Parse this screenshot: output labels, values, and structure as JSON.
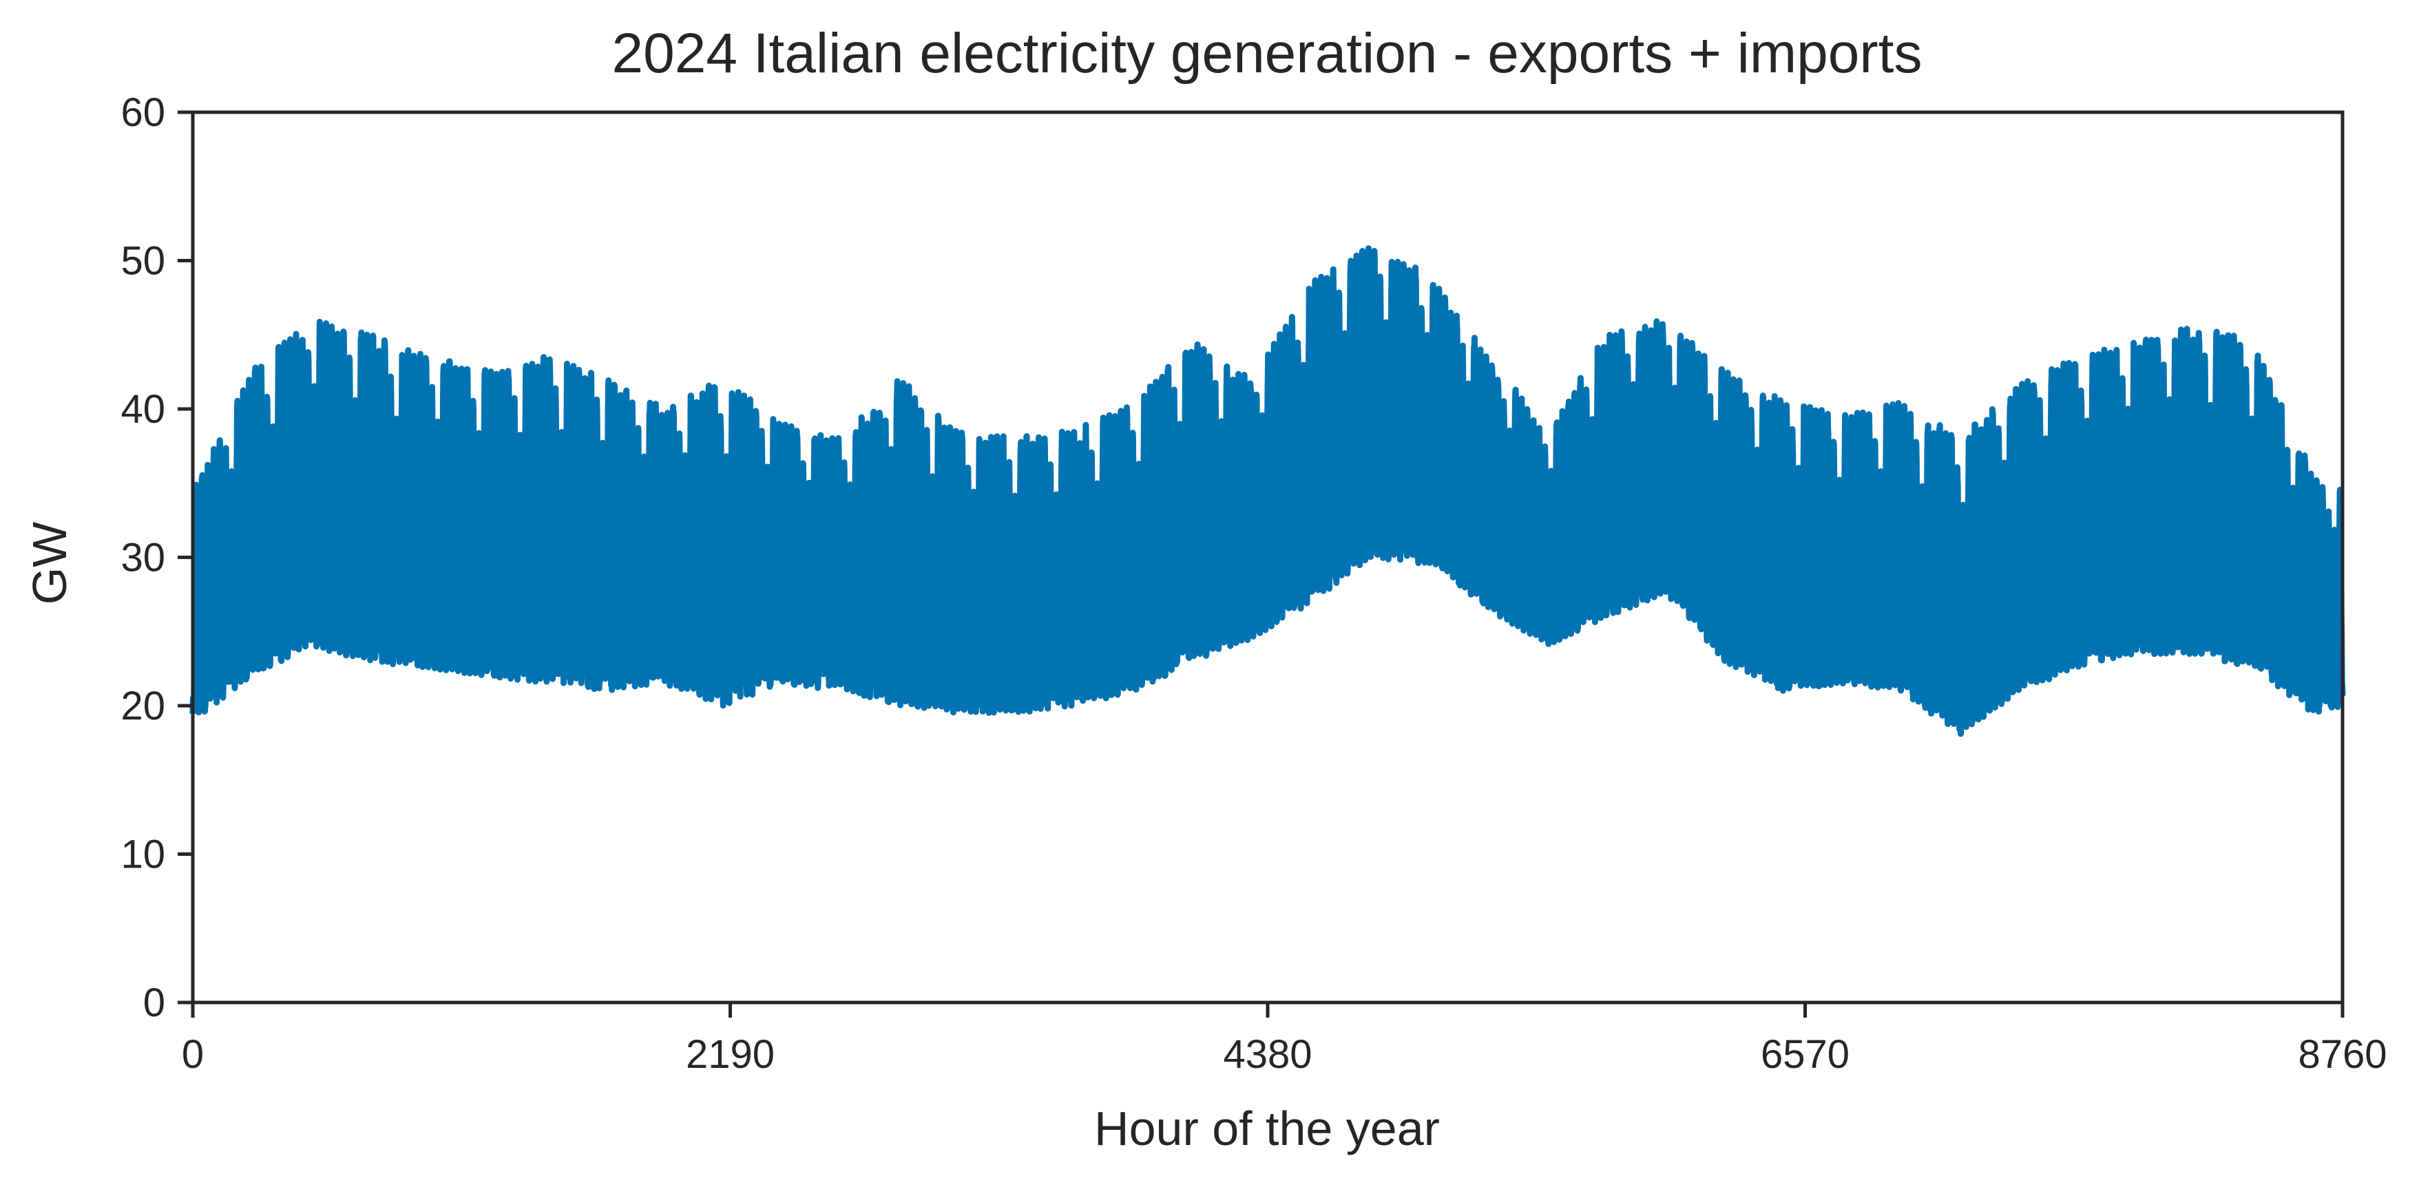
{
  "chart_data": {
    "type": "line",
    "title": "2024 Italian electricity generation - exports + imports",
    "xlabel": "Hour of the year",
    "ylabel": "GW",
    "xlim": [
      0,
      8760
    ],
    "ylim": [
      0,
      60
    ],
    "xticks": [
      0,
      2190,
      4380,
      6570,
      8760
    ],
    "xtick_labels": [
      "0",
      "2190",
      "4380",
      "6570",
      "8760"
    ],
    "yticks": [
      0,
      10,
      20,
      30,
      40,
      50,
      60
    ],
    "ytick_labels": [
      "0",
      "10",
      "20",
      "30",
      "40",
      "50",
      "60"
    ],
    "grid": false,
    "series": [
      {
        "name": "generation - exports + imports",
        "color": "#0173b2",
        "resolution_hours": 1,
        "envelope_note": "hourly series approximated from its visible daily range (daily min / max in GW)",
        "daily_range_x": [
          0,
          240,
          480,
          720,
          960,
          1200,
          1440,
          1680,
          1920,
          2160,
          2400,
          2640,
          2880,
          3120,
          3360,
          3600,
          3840,
          4080,
          4320,
          4560,
          4800,
          5040,
          5280,
          5520,
          5760,
          6000,
          6240,
          6480,
          6720,
          6960,
          7200,
          7440,
          7680,
          7920,
          8160,
          8400,
          8640,
          8760
        ],
        "daily_max": [
          34,
          42,
          45.5,
          44.5,
          43,
          42,
          43,
          41.5,
          39.5,
          41.5,
          38.5,
          37.5,
          41.5,
          38,
          37.5,
          38,
          40,
          44,
          41.5,
          48,
          50.5,
          48.5,
          43,
          38,
          44.5,
          45.5,
          42,
          40,
          39,
          40,
          37.5,
          41,
          43,
          44,
          45,
          44,
          35,
          34
        ],
        "daily_min": [
          19,
          22,
          24,
          23,
          22.5,
          22,
          21.5,
          21,
          21.5,
          20,
          21.5,
          21,
          20,
          19.5,
          19.5,
          20,
          21,
          23,
          24.5,
          27,
          30,
          29.5,
          26.5,
          24,
          26,
          27.5,
          23,
          21,
          21.5,
          21,
          18,
          21,
          22.5,
          23.5,
          23.5,
          22.5,
          19.5,
          20
        ]
      }
    ]
  }
}
